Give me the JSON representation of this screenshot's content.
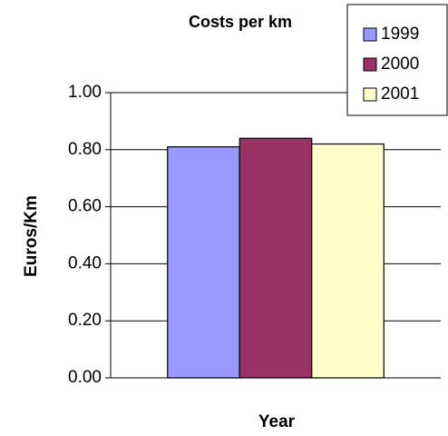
{
  "chart_data": {
    "type": "bar",
    "title": "Costs per km",
    "y_label": "Euros/Km",
    "x_label": "Year",
    "categories": [
      null
    ],
    "series": [
      {
        "name": "1999",
        "color": "#9999ff",
        "values": [
          0.81
        ]
      },
      {
        "name": "2000",
        "color": "#993366",
        "values": [
          0.84
        ]
      },
      {
        "name": "2001",
        "color": "#ffffcc",
        "values": [
          0.82
        ]
      }
    ],
    "ylim": [
      0,
      1
    ],
    "yticks": [
      {
        "value": 0,
        "label": "0.00"
      },
      {
        "value": 0.2,
        "label": "0.20"
      },
      {
        "value": 0.4,
        "label": "0.40"
      },
      {
        "value": 0.6,
        "label": "0.60"
      },
      {
        "value": 0.8,
        "label": "0.80"
      },
      {
        "value": 1,
        "label": "1.00"
      }
    ],
    "grid": true,
    "legend": "upper right"
  }
}
